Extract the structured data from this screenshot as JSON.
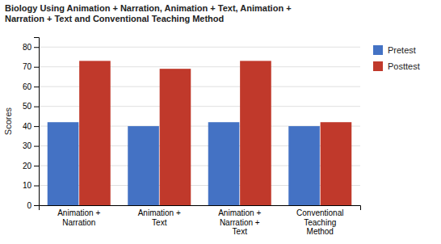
{
  "chart_data": {
    "type": "bar",
    "title": "Biology Using Animation + Narration, Animation + Text, Animation +\nNarration + Text and Conventional Teaching Method",
    "categories": [
      "Animation +\nNarration",
      "Animation +\nText",
      "Animation +\nNarration +\nText",
      "Conventional\nTeaching\nMethod"
    ],
    "series": [
      {
        "name": "Pretest",
        "color": "#4472c4",
        "values": [
          42,
          40,
          42,
          40
        ]
      },
      {
        "name": "Posttest",
        "color": "#c0392b",
        "values": [
          73,
          69,
          73,
          42
        ]
      }
    ],
    "ylabel": "Scores",
    "ylim": [
      0,
      85
    ],
    "yticks": [
      0,
      10,
      20,
      30,
      40,
      50,
      60,
      70,
      80
    ],
    "grid": true,
    "legend": "right"
  }
}
